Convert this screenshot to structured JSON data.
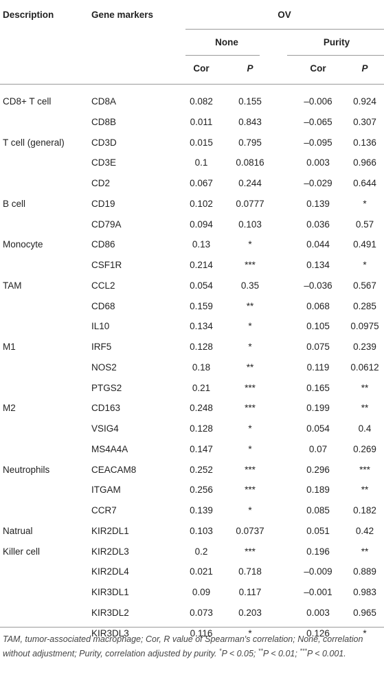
{
  "header": {
    "description": "Description",
    "gene_markers": "Gene markers",
    "cancer": "OV",
    "none": "None",
    "purity": "Purity",
    "cor_none": "Cor",
    "p_none": "P",
    "cor_purity": "Cor",
    "p_purity": "P"
  },
  "groups": [
    {
      "description": [
        "CD8+ T cell"
      ],
      "rows": [
        [
          "CD8A",
          "0.082",
          "0.155",
          "–0.006",
          "0.924"
        ],
        [
          "CD8B",
          "0.011",
          "0.843",
          "–0.065",
          "0.307"
        ]
      ]
    },
    {
      "description": [
        "T cell (general)"
      ],
      "rows": [
        [
          "CD3D",
          "0.015",
          "0.795",
          "–0.095",
          "0.136"
        ],
        [
          "CD3E",
          "0.1",
          "0.0816",
          "0.003",
          "0.966"
        ],
        [
          "CD2",
          "0.067",
          "0.244",
          "–0.029",
          "0.644"
        ]
      ]
    },
    {
      "description": [
        "B cell"
      ],
      "rows": [
        [
          "CD19",
          "0.102",
          "0.0777",
          "0.139",
          "*"
        ],
        [
          "CD79A",
          "0.094",
          "0.103",
          "0.036",
          "0.57"
        ]
      ]
    },
    {
      "description": [
        "Monocyte"
      ],
      "rows": [
        [
          "CD86",
          "0.13",
          "*",
          "0.044",
          "0.491"
        ],
        [
          "CSF1R",
          "0.214",
          "***",
          "0.134",
          "*"
        ]
      ]
    },
    {
      "description": [
        "TAM"
      ],
      "rows": [
        [
          "CCL2",
          "0.054",
          "0.35",
          "–0.036",
          "0.567"
        ],
        [
          "CD68",
          "0.159",
          "**",
          "0.068",
          "0.285"
        ],
        [
          "IL10",
          "0.134",
          "*",
          "0.105",
          "0.0975"
        ]
      ]
    },
    {
      "description": [
        "M1"
      ],
      "rows": [
        [
          "IRF5",
          "0.128",
          "*",
          "0.075",
          "0.239"
        ],
        [
          "NOS2",
          "0.18",
          "**",
          "0.119",
          "0.0612"
        ],
        [
          "PTGS2",
          "0.21",
          "***",
          "0.165",
          "**"
        ]
      ]
    },
    {
      "description": [
        "M2"
      ],
      "rows": [
        [
          "CD163",
          "0.248",
          "***",
          "0.199",
          "**"
        ],
        [
          "VSIG4",
          "0.128",
          "*",
          "0.054",
          "0.4"
        ],
        [
          "MS4A4A",
          "0.147",
          "*",
          "0.07",
          "0.269"
        ]
      ]
    },
    {
      "description": [
        "Neutrophils"
      ],
      "rows": [
        [
          "CEACAM8",
          "0.252",
          "***",
          "0.296",
          "***"
        ],
        [
          "ITGAM",
          "0.256",
          "***",
          "0.189",
          "**"
        ],
        [
          "CCR7",
          "0.139",
          "*",
          "0.085",
          "0.182"
        ]
      ]
    },
    {
      "description": [
        "Natrual",
        "Killer cell"
      ],
      "rows": [
        [
          "KIR2DL1",
          "0.103",
          "0.0737",
          "0.051",
          "0.42"
        ],
        [
          "KIR2DL3",
          "0.2",
          "***",
          "0.196",
          "**"
        ],
        [
          "KIR2DL4",
          "0.021",
          "0.718",
          "–0.009",
          "0.889"
        ],
        [
          "KIR3DL1",
          "0.09",
          "0.117",
          "–0.001",
          "0.983"
        ],
        [
          "KIR3DL2",
          "0.073",
          "0.203",
          "0.003",
          "0.965"
        ],
        [
          "KIR3DL3",
          "0.116",
          "*",
          "0.126",
          "*"
        ]
      ]
    }
  ],
  "footnote": [
    {
      "text": "TAM, tumor-associated macrophage; Cor, R value of Spearman's correlation; None, correlation without adjustment; Purity, correlation adjusted by purity. "
    },
    {
      "sup": "*"
    },
    {
      "text": "P < 0.05; "
    },
    {
      "sup": "**"
    },
    {
      "text": "P < 0.01; "
    },
    {
      "sup": "***"
    },
    {
      "text": "P < 0.001."
    }
  ]
}
